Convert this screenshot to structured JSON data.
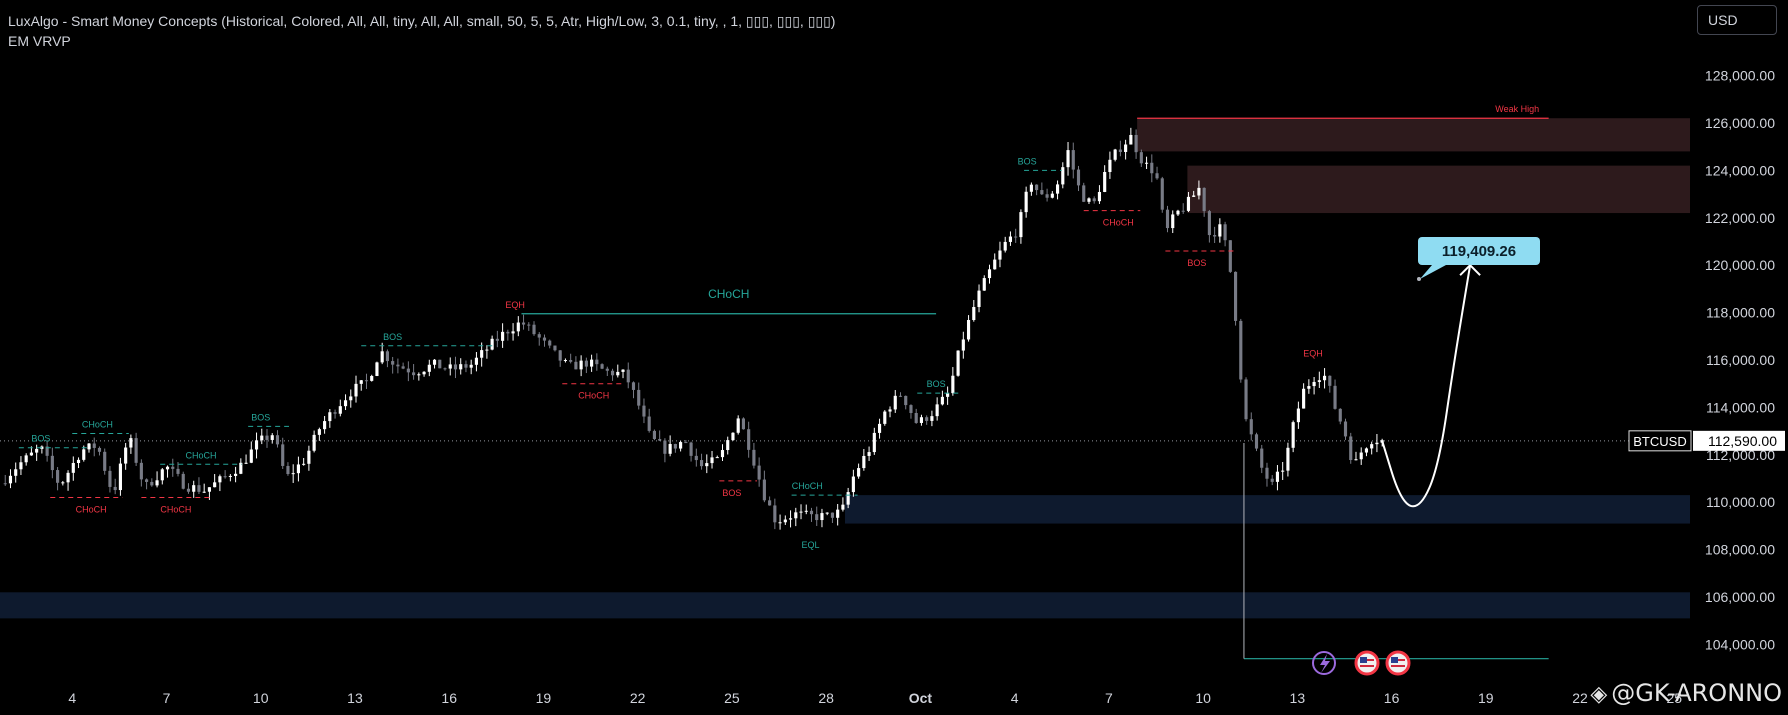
{
  "header": {
    "indicator_line1": "LuxAlgo - Smart Money Concepts (Historical, Colored, All, All, tiny, All, All, small, 50, 5, 5, Atr, High/Low, 3, 0.1, tiny, , 1, ▯▯▯, ▯▯▯, ▯▯▯)",
    "indicator_line2": "EM VRVP",
    "currency": "USD"
  },
  "watermark": "@GK-ARONNO",
  "colors": {
    "background": "#000000",
    "bull": "#ffffff",
    "bear": "#787b86",
    "bos_bull": "#26a69a",
    "choch_bear": "#f23645",
    "supply_zone": "#2d1a1c",
    "demand_zone": "#0e1a2e",
    "callout": "#8fdcf2"
  },
  "chart_data": {
    "type": "candlestick",
    "symbol": "BTCUSD",
    "last_price_label": "112,590.00",
    "last_price": 112590,
    "ylim": [
      102500,
      129500
    ],
    "y_ticks": [
      104000,
      106000,
      108000,
      110000,
      112000,
      114000,
      116000,
      118000,
      120000,
      122000,
      124000,
      126000,
      128000
    ],
    "y_tick_labels": [
      "104,000.00",
      "106,000.00",
      "108,000.00",
      "110,000.00",
      "112,000.00",
      "114,000.00",
      "116,000.00",
      "118,000.00",
      "120,000.00",
      "122,000.00",
      "124,000.00",
      "126,000.00",
      "128,000.00"
    ],
    "x_ticks": [
      {
        "day": 4,
        "label": "4"
      },
      {
        "day": 7,
        "label": "7"
      },
      {
        "day": 10,
        "label": "10"
      },
      {
        "day": 13,
        "label": "13"
      },
      {
        "day": 16,
        "label": "16"
      },
      {
        "day": 19,
        "label": "19"
      },
      {
        "day": 22,
        "label": "22"
      },
      {
        "day": 25,
        "label": "25"
      },
      {
        "day": 28,
        "label": "28"
      },
      {
        "day": 31,
        "label": "Oct"
      },
      {
        "day": 34,
        "label": "4"
      },
      {
        "day": 37,
        "label": "7"
      },
      {
        "day": 40,
        "label": "10"
      },
      {
        "day": 43,
        "label": "13"
      },
      {
        "day": 46,
        "label": "16"
      },
      {
        "day": 49,
        "label": "19"
      },
      {
        "day": 52,
        "label": "22"
      },
      {
        "day": 55,
        "label": "25"
      }
    ],
    "xlim": [
      1.7,
      55.5
    ],
    "close_path": [
      [
        1.7,
        110800
      ],
      [
        2.3,
        111600
      ],
      [
        3.0,
        112300
      ],
      [
        3.6,
        110700
      ],
      [
        4.3,
        112200
      ],
      [
        4.8,
        112400
      ],
      [
        5.3,
        110300
      ],
      [
        5.8,
        112800
      ],
      [
        6.3,
        110600
      ],
      [
        7.0,
        111500
      ],
      [
        7.6,
        110700
      ],
      [
        8.2,
        110500
      ],
      [
        8.8,
        111000
      ],
      [
        9.4,
        111600
      ],
      [
        9.9,
        112500
      ],
      [
        10.4,
        112900
      ],
      [
        10.8,
        111000
      ],
      [
        11.4,
        111800
      ],
      [
        11.9,
        113200
      ],
      [
        12.4,
        114000
      ],
      [
        12.9,
        114700
      ],
      [
        13.4,
        115100
      ],
      [
        13.8,
        116400
      ],
      [
        14.3,
        115800
      ],
      [
        14.9,
        115500
      ],
      [
        15.5,
        115800
      ],
      [
        16.1,
        115600
      ],
      [
        16.7,
        115800
      ],
      [
        17.3,
        116600
      ],
      [
        17.8,
        117200
      ],
      [
        18.3,
        117600
      ],
      [
        18.8,
        117000
      ],
      [
        19.3,
        116300
      ],
      [
        19.8,
        115700
      ],
      [
        20.4,
        115900
      ],
      [
        21.0,
        115500
      ],
      [
        21.6,
        115400
      ],
      [
        22.0,
        114200
      ],
      [
        22.4,
        112700
      ],
      [
        22.9,
        112200
      ],
      [
        23.5,
        112600
      ],
      [
        24.0,
        111500
      ],
      [
        24.6,
        111800
      ],
      [
        25.2,
        113600
      ],
      [
        25.6,
        112200
      ],
      [
        26.0,
        110400
      ],
      [
        26.4,
        109200
      ],
      [
        27.0,
        109500
      ],
      [
        27.5,
        109400
      ],
      [
        28.0,
        109400
      ],
      [
        28.5,
        109600
      ],
      [
        28.9,
        111200
      ],
      [
        29.4,
        112300
      ],
      [
        29.9,
        113900
      ],
      [
        30.4,
        114600
      ],
      [
        30.9,
        113300
      ],
      [
        31.4,
        113800
      ],
      [
        31.9,
        114600
      ],
      [
        32.3,
        116700
      ],
      [
        32.8,
        118600
      ],
      [
        33.3,
        120000
      ],
      [
        33.7,
        120900
      ],
      [
        34.1,
        121500
      ],
      [
        34.5,
        123600
      ],
      [
        34.9,
        122800
      ],
      [
        35.3,
        123200
      ],
      [
        35.7,
        124800
      ],
      [
        36.1,
        123000
      ],
      [
        36.5,
        122500
      ],
      [
        36.9,
        124000
      ],
      [
        37.3,
        124900
      ],
      [
        37.7,
        125400
      ],
      [
        38.1,
        124300
      ],
      [
        38.5,
        123900
      ],
      [
        38.8,
        121300
      ],
      [
        39.1,
        122100
      ],
      [
        39.5,
        122600
      ],
      [
        39.9,
        123300
      ],
      [
        40.2,
        121300
      ],
      [
        40.6,
        121600
      ],
      [
        40.9,
        119500
      ],
      [
        41.1,
        117000
      ],
      [
        41.3,
        113700
      ],
      [
        41.6,
        112500
      ],
      [
        41.9,
        111300
      ],
      [
        42.2,
        110700
      ],
      [
        42.6,
        111600
      ],
      [
        42.9,
        113400
      ],
      [
        43.2,
        114700
      ],
      [
        43.6,
        115400
      ],
      [
        43.9,
        115300
      ],
      [
        44.2,
        114000
      ],
      [
        44.5,
        113000
      ],
      [
        44.8,
        111500
      ],
      [
        45.1,
        112300
      ],
      [
        45.4,
        112700
      ],
      [
        45.7,
        112590
      ]
    ],
    "projection": {
      "path": [
        [
          45.7,
          112590
        ],
        [
          46.3,
          110000
        ],
        [
          46.9,
          109700
        ],
        [
          47.5,
          111500
        ],
        [
          48.0,
          116000
        ],
        [
          48.5,
          120000
        ]
      ],
      "callout_label": "119,409.26",
      "callout_value": 119409.26
    },
    "zones": [
      {
        "kind": "supply",
        "x1": 37.9,
        "x2": 55.5,
        "y1": 124800,
        "y2": 126200
      },
      {
        "kind": "supply",
        "x1": 39.5,
        "x2": 55.5,
        "y1": 122200,
        "y2": 124200
      },
      {
        "kind": "demand",
        "x1": 28.6,
        "x2": 55.5,
        "y1": 109100,
        "y2": 110300
      },
      {
        "kind": "demand",
        "x1": 1.7,
        "x2": 55.5,
        "y1": 105100,
        "y2": 106200
      }
    ],
    "lines": [
      {
        "kind": "choch_line",
        "x1": 18.3,
        "x2": 31.5,
        "y": 117950,
        "color": "#26a69a"
      },
      {
        "kind": "weak_high",
        "x1": 37.9,
        "x2": 51.0,
        "y": 126200,
        "color": "#f23645"
      },
      {
        "kind": "low_line",
        "x1": 41.3,
        "x2": 51.0,
        "y": 103400,
        "color": "#26a69a"
      }
    ],
    "annotations": [
      {
        "text": "BOS",
        "x": 3.0,
        "y": 112300,
        "color": "bull",
        "x1": 2.3,
        "x2": 4.6
      },
      {
        "text": "CHoCH",
        "x": 4.6,
        "y": 110200,
        "color": "bear",
        "below": true,
        "x1": 3.3,
        "x2": 5.6
      },
      {
        "text": "CHoCH",
        "x": 4.8,
        "y": 112900,
        "color": "bull",
        "x1": 4.0,
        "x2": 5.8
      },
      {
        "text": "CHoCH",
        "x": 7.3,
        "y": 110200,
        "color": "bear",
        "below": true,
        "x1": 6.2,
        "x2": 8.4
      },
      {
        "text": "CHoCH",
        "x": 8.1,
        "y": 111600,
        "color": "bull",
        "x1": 6.8,
        "x2": 9.4
      },
      {
        "text": "BOS",
        "x": 10.0,
        "y": 113200,
        "color": "bull",
        "x1": 9.6,
        "x2": 10.9
      },
      {
        "text": "BOS",
        "x": 14.2,
        "y": 116600,
        "color": "bull",
        "x1": 13.2,
        "x2": 17.5
      },
      {
        "text": "EQH",
        "x": 18.1,
        "y": 117950,
        "color": "bear"
      },
      {
        "text": "CHoCH",
        "x": 20.6,
        "y": 115000,
        "color": "bear",
        "below": true,
        "x1": 19.6,
        "x2": 21.6
      },
      {
        "text": "BOS",
        "x": 25.0,
        "y": 110900,
        "color": "bear",
        "below": true,
        "x1": 24.6,
        "x2": 25.8
      },
      {
        "text": "CHoCH",
        "x": 27.4,
        "y": 110300,
        "color": "bull",
        "x1": 26.9,
        "x2": 29.0
      },
      {
        "text": "EQL",
        "x": 27.5,
        "y": 108700,
        "color": "bull",
        "below": true
      },
      {
        "text": "BOS",
        "x": 31.5,
        "y": 114600,
        "color": "bull",
        "x1": 30.9,
        "x2": 32.3
      },
      {
        "text": "BOS",
        "x": 34.4,
        "y": 124000,
        "color": "bull",
        "x1": 34.3,
        "x2": 35.5
      },
      {
        "text": "CHoCH",
        "x": 37.3,
        "y": 122300,
        "color": "bear",
        "below": true,
        "x1": 36.2,
        "x2": 38.0
      },
      {
        "text": "BOS",
        "x": 39.8,
        "y": 120600,
        "color": "bear",
        "below": true,
        "x1": 38.8,
        "x2": 41.0
      },
      {
        "text": "EQH",
        "x": 43.5,
        "y": 115900,
        "color": "bear"
      },
      {
        "text": "Weak High",
        "x": 50.0,
        "y": 126200,
        "color": "bear"
      }
    ]
  }
}
